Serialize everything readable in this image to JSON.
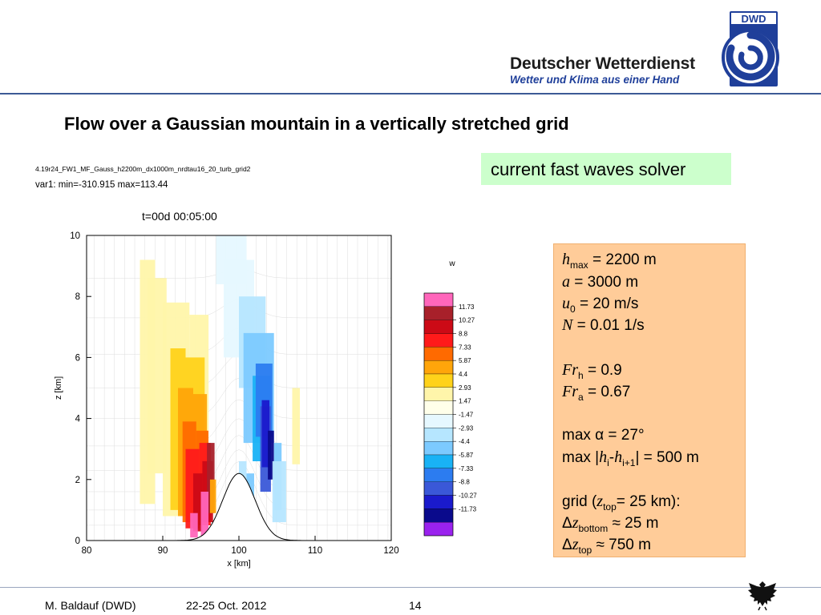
{
  "header": {
    "brand_name": "Deutscher Wetterdienst",
    "brand_tagline": "Wetter und Klima aus einer Hand",
    "logo_text": "DWD",
    "brand_color": "#1f3f9a"
  },
  "slide": {
    "title": "Flow over a Gaussian mountain in a vertically stretched grid",
    "solver_label": "current fast waves solver"
  },
  "plot": {
    "run_name": "4.19r24_FW1_MF_Gauss_h2200m_dx1000m_nrdtau16_20_turb_grid2",
    "var_info": "var1:   min=-310.915   max=113.44",
    "time_label": "t=00d 00:05:00",
    "legend_title": "w"
  },
  "chart_data": {
    "type": "heatmap",
    "variable": "w",
    "xlabel": "x [km]",
    "ylabel": "z [km]",
    "xlim": [
      80,
      120
    ],
    "ylim": [
      0,
      10
    ],
    "x_ticks": [
      80,
      90,
      100,
      110,
      120
    ],
    "y_ticks": [
      0,
      2,
      4,
      6,
      8,
      10
    ],
    "colorbar_levels": [
      11.73,
      10.27,
      8.8,
      7.33,
      5.87,
      4.4,
      2.93,
      1.47,
      -1.47,
      -2.93,
      -4.4,
      -5.87,
      -7.33,
      -8.8,
      -10.27,
      -11.73
    ],
    "colorbar_colors": [
      "#ff66bb",
      "#a8202a",
      "#cc0a16",
      "#ff1a1a",
      "#ff6a00",
      "#ffa50a",
      "#ffd21a",
      "#fff5aa",
      "#ffffea",
      "#e6f8ff",
      "#b6e6ff",
      "#7ccaff",
      "#19b2f5",
      "#2c7cf0",
      "#3a58d8",
      "#1a1acc",
      "#0a0a8c",
      "#9a22ee"
    ],
    "terrain": {
      "shape": "gaussian",
      "center_x": 100,
      "peak_height_km": 2.2,
      "half_width_km": 3
    }
  },
  "params": [
    {
      "sym": "h",
      "sub": "max",
      "val": " = 2200 m"
    },
    {
      "sym": "a",
      "sub": "",
      "val": "     = 3000 m"
    },
    {
      "sym": "u",
      "sub": "0",
      "val": "    = 20 m/s"
    },
    {
      "sym": "N",
      "sub": "",
      "val": "     = 0.01 1/s"
    },
    {
      "sym": "Fr",
      "sub": "h",
      "val": " = 0.9"
    },
    {
      "sym": "Fr",
      "sub": "a",
      "val": " = 0.67"
    },
    {
      "text": "max α = 27°"
    },
    {
      "pre": "max |",
      "sym": "h",
      "sub": "i",
      "mid": "-",
      "sym2": "h",
      "sub2": "i+1",
      "val": "| = 500 m"
    },
    {
      "pre": "grid (",
      "sym": "z",
      "sub": "top",
      "val": "= 25 km):"
    },
    {
      "pre": "Δ",
      "sym": "z",
      "sub": "bottom",
      "val": " ≈  25 m"
    },
    {
      "pre": "Δ",
      "sym": "z",
      "sub": "top",
      "val": "      ≈ 750 m"
    }
  ],
  "footer": {
    "author": "M. Baldauf (DWD)",
    "date": "22-25 Oct. 2012",
    "page": "14"
  }
}
